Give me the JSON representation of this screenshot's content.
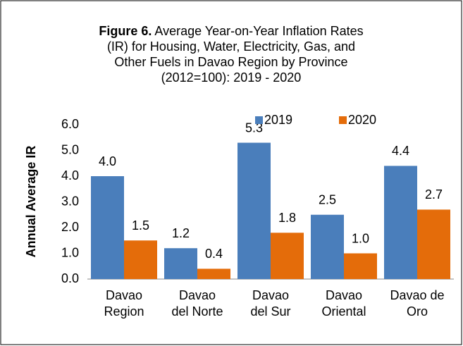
{
  "chart_data": {
    "type": "bar",
    "title_label": "Figure 6.",
    "title_lines": [
      "Average Year-on-Year Inflation Rates",
      "(IR) for Housing, Water, Electricity, Gas, and",
      "Other Fuels in Davao Region by Province",
      "(2012=100): 2019 - 2020"
    ],
    "y_label": "Annual Average IR",
    "categories": [
      [
        "Davao",
        "Region"
      ],
      [
        "Davao",
        "del Norte"
      ],
      [
        "Davao",
        "del Sur"
      ],
      [
        "Davao",
        "Oriental"
      ],
      [
        "Davao de",
        "Oro"
      ]
    ],
    "series": [
      {
        "name": "2019",
        "color": "#4a7ebb",
        "values": [
          4.0,
          1.2,
          5.3,
          2.5,
          4.4
        ],
        "value_labels": [
          "4.0",
          "1.2",
          "5.3",
          "2.5",
          "4.4"
        ]
      },
      {
        "name": "2020",
        "color": "#e46c0a",
        "values": [
          1.5,
          0.4,
          1.8,
          1.0,
          2.7
        ],
        "value_labels": [
          "1.5",
          "0.4",
          "1.8",
          "1.0",
          "2.7"
        ]
      }
    ],
    "ylim": [
      0,
      6
    ],
    "yticks": [
      {
        "value": 0,
        "label": "0.0"
      },
      {
        "value": 1,
        "label": "1.0"
      },
      {
        "value": 2,
        "label": "2.0"
      },
      {
        "value": 3,
        "label": "3.0"
      },
      {
        "value": 4,
        "label": "4.0"
      },
      {
        "value": 5,
        "label": "5.0"
      },
      {
        "value": 6,
        "label": "6.0"
      }
    ],
    "legend": "top-right"
  }
}
